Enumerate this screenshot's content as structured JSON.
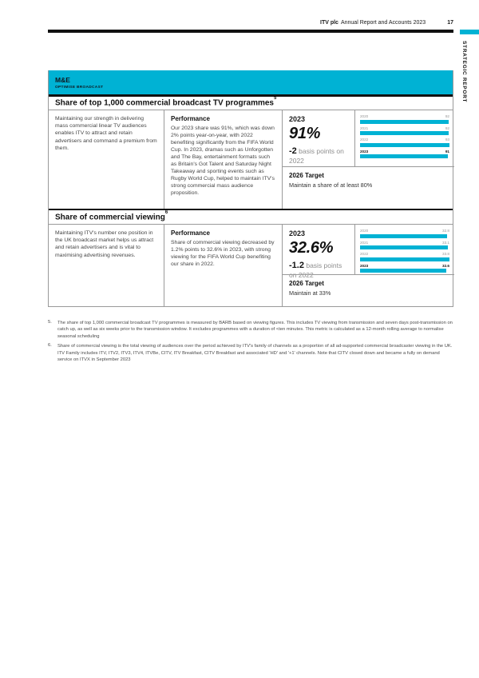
{
  "colors": {
    "accent_cyan": "#00b2d4",
    "rule_black": "#111111"
  },
  "page_header": {
    "brand": "ITV plc",
    "title": "Annual Report and Accounts 2023",
    "page_number": "17",
    "section_tab": "STRATEGIC REPORT"
  },
  "band": {
    "title": "M&E",
    "subtitle": "OPTIMISE BROADCAST"
  },
  "kpis": [
    {
      "title": "Share of top 1,000 commercial broadcast TV programmes",
      "footnote_ref": "5",
      "rationale": "Maintaining our strength in delivering mass commercial linear TV audiences enables ITV to attract and retain advertisers and command a premium from them.",
      "performance_heading": "Performance",
      "performance": "Our 2023 share was 91%, which was down 2% points year-on-year, with 2022 benefiting significantly from the FIFA World Cup. In 2023, dramas such as Unforgotten and The Bay, entertainment formats such as Britain's Got Talent and Saturday Night Takeaway and sporting events such as Rugby World Cup, helped to maintain ITV's strong commercial mass audience proposition.",
      "stat_year": "2023",
      "stat_value": "91%",
      "stat_change": "-2",
      "stat_change_suffix": "basis points on 2022",
      "target_heading": "2026 Target",
      "target": "Maintain a share of at least 80%"
    },
    {
      "title": "Share of commercial viewing",
      "footnote_ref": "6",
      "rationale": "Maintaining ITV's number one position in the UK broadcast market helps us attract and retain advertisers and is vital to maximising advertising revenues.",
      "performance_heading": "Performance",
      "performance": "Share of commercial viewing decreased by 1.2% points to 32.6% in 2023, with strong viewing for the FIFA World Cup benefiting our share in 2022.",
      "stat_year": "2023",
      "stat_value": "32.6%",
      "stat_change": "-1.2",
      "stat_change_suffix": "basis points on 2022",
      "target_heading": "2026 Target",
      "target": "Maintain at 33%"
    }
  ],
  "chart_data": [
    {
      "type": "bar",
      "orientation": "horizontal",
      "title": "Share of top 1,000 commercial broadcast TV programmes (%)",
      "categories": [
        "2020",
        "2021",
        "2022",
        "2023"
      ],
      "values": [
        92,
        92,
        93,
        91
      ],
      "xlim": [
        0,
        93
      ],
      "highlight_category": "2023",
      "legend": "none",
      "grid": false
    },
    {
      "type": "bar",
      "orientation": "horizontal",
      "title": "Share of commercial viewing (%)",
      "categories": [
        "2020",
        "2021",
        "2022",
        "2023"
      ],
      "values": [
        32.8,
        33.1,
        33.8,
        32.6
      ],
      "xlim": [
        0,
        33.8
      ],
      "highlight_category": "2023",
      "legend": "none",
      "grid": false
    }
  ],
  "footnotes": [
    {
      "num": "5.",
      "text": "The share of top 1,000 commercial broadcast TV programmes is measured by BARB based on viewing figures. This includes TV viewing from transmission and seven days post-transmission on catch up, as well as six weeks prior to the transmission window. It excludes programmes with a duration of <ten minutes. This metric is calculated as a 12-month rolling average to normalise seasonal scheduling"
    },
    {
      "num": "6.",
      "text": "Share of commercial viewing is the total viewing of audiences over the period achieved by ITV's family of channels as a proportion of all ad-supported commercial broadcaster viewing in the UK. ITV Family includes ITV, ITV2, ITV3, ITV4, ITVBe, CITV, ITV Breakfast, CITV Breakfast and associated 'HD' and '+1' channels. Note that CITV closed down and became a fully on demand service on ITVX in September 2023"
    }
  ]
}
